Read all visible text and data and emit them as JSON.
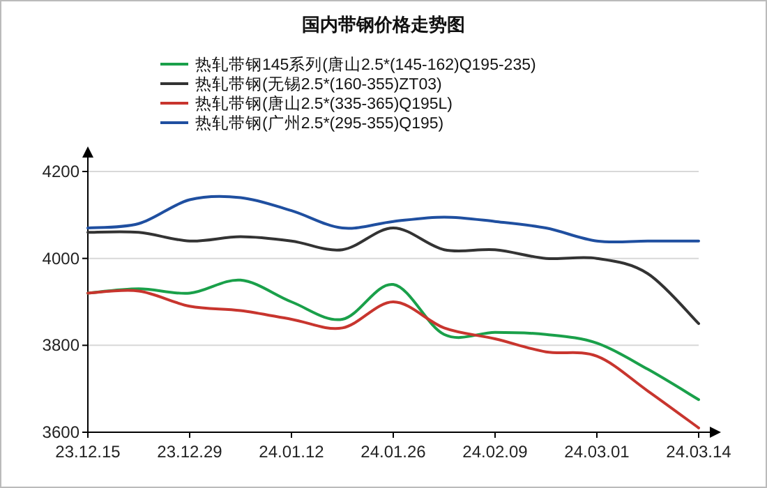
{
  "chart_data": {
    "type": "line",
    "title": "国内带钢价格走势图",
    "categories": [
      "23.12.15",
      null,
      "23.12.29",
      null,
      "24.01.12",
      null,
      "24.01.26",
      null,
      "24.02.09",
      null,
      "24.03.01",
      null,
      "24.03.14"
    ],
    "series": [
      {
        "name": "热轧带钢145系列(唐山2.5*(145-162)Q195-235)",
        "color": "#1aa04a",
        "values": [
          3920,
          3930,
          3920,
          3950,
          3900,
          3860,
          3940,
          3825,
          3830,
          3825,
          3805,
          3745,
          3675
        ]
      },
      {
        "name": "热轧带钢(无锡2.5*(160-355)ZT03)",
        "color": "#333333",
        "values": [
          4060,
          4060,
          4040,
          4050,
          4040,
          4020,
          4070,
          4020,
          4020,
          4000,
          4000,
          3965,
          3850
        ]
      },
      {
        "name": "热轧带钢(唐山2.5*(335-365)Q195L)",
        "color": "#c8352e",
        "values": [
          3920,
          3925,
          3890,
          3880,
          3860,
          3840,
          3900,
          3840,
          3815,
          3785,
          3775,
          3695,
          3610
        ]
      },
      {
        "name": "热轧带钢(广州2.5*(295-355)Q195)",
        "color": "#1f4fa0",
        "values": [
          4070,
          4080,
          4135,
          4140,
          4110,
          4070,
          4085,
          4095,
          4085,
          4070,
          4040,
          4040,
          4040
        ]
      }
    ],
    "ylim": [
      3600,
      4200
    ],
    "yticks": [
      3600,
      3800,
      4000,
      4200
    ],
    "grid": "y",
    "legend": "top"
  }
}
